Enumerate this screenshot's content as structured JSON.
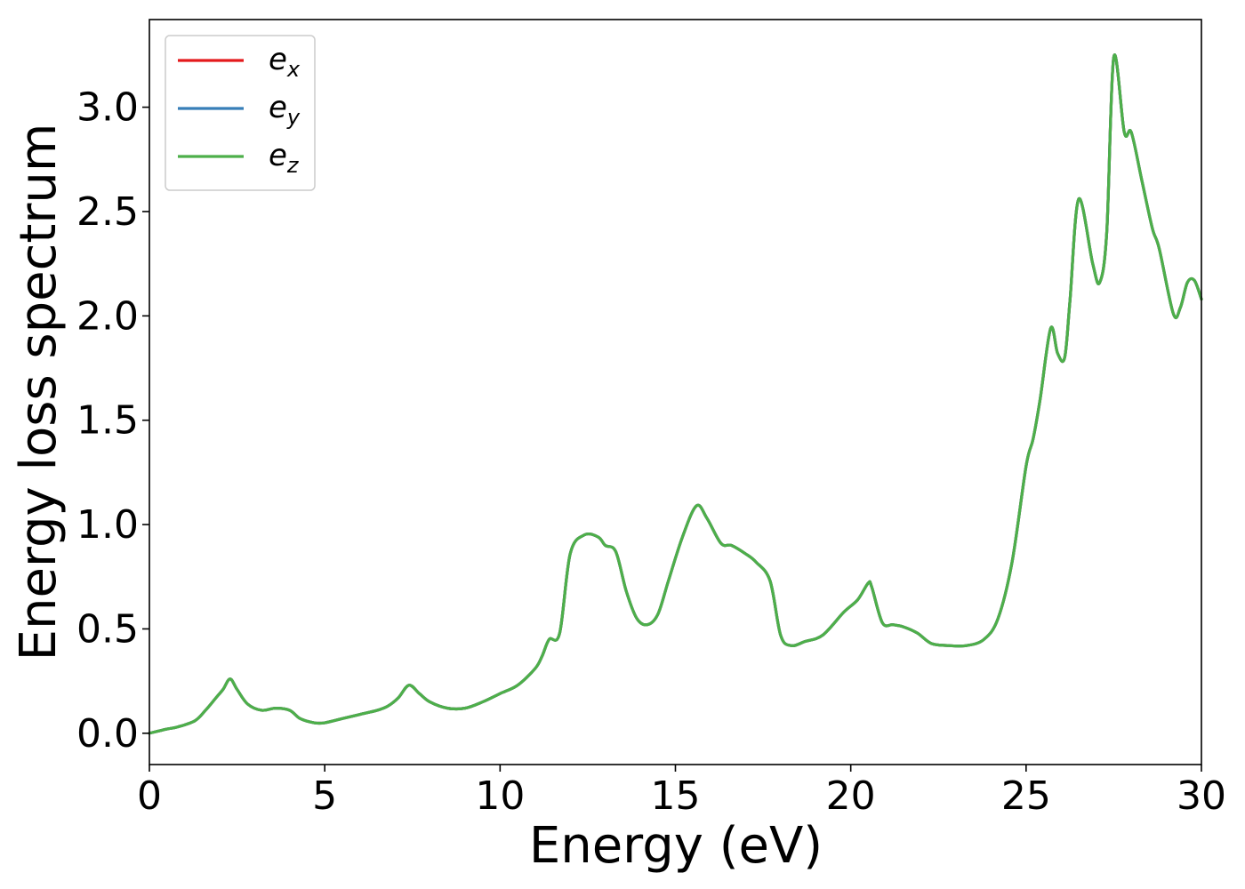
{
  "chart_data": {
    "type": "line",
    "title": "",
    "xlabel": "Energy (eV)",
    "ylabel": "Energy loss spectrum",
    "xlim": [
      0,
      30
    ],
    "ylim": [
      -0.15,
      3.42
    ],
    "xticks": [
      0,
      5,
      10,
      15,
      20,
      25,
      30
    ],
    "xtick_labels": [
      "0",
      "5",
      "10",
      "15",
      "20",
      "25",
      "30"
    ],
    "yticks": [
      0.0,
      0.5,
      1.0,
      1.5,
      2.0,
      2.5,
      3.0
    ],
    "ytick_labels": [
      "0.0",
      "0.5",
      "1.0",
      "1.5",
      "2.0",
      "2.5",
      "3.0"
    ],
    "grid": false,
    "legend_position": "top-left",
    "legend": [
      {
        "base": "e",
        "sub": "x",
        "color": "#e41a1c"
      },
      {
        "base": "e",
        "sub": "y",
        "color": "#377eb8"
      },
      {
        "base": "e",
        "sub": "z",
        "color": "#4daf4a"
      }
    ],
    "x": [
      0.0,
      0.5,
      0.8,
      1.3,
      1.6,
      1.9,
      2.1,
      2.3,
      2.5,
      2.8,
      3.2,
      3.6,
      4.0,
      4.3,
      4.7,
      5.0,
      5.5,
      6.0,
      6.5,
      6.8,
      7.1,
      7.4,
      7.7,
      8.0,
      8.5,
      9.0,
      9.5,
      10.0,
      10.5,
      11.0,
      11.2,
      11.4,
      11.7,
      12.0,
      12.4,
      12.8,
      13.0,
      13.3,
      13.6,
      13.9,
      14.2,
      14.5,
      14.8,
      15.2,
      15.6,
      15.9,
      16.3,
      16.6,
      17.0,
      17.3,
      17.7,
      18.0,
      18.3,
      18.7,
      19.2,
      19.8,
      20.2,
      20.5,
      20.6,
      20.9,
      21.2,
      21.5,
      21.9,
      22.3,
      22.8,
      23.3,
      23.8,
      24.2,
      24.6,
      25.0,
      25.2,
      25.4,
      25.7,
      25.9,
      26.1,
      26.25,
      26.5,
      26.9,
      27.1,
      27.3,
      27.5,
      27.8,
      28.0,
      28.3,
      28.6,
      28.8,
      29.2,
      29.4,
      29.6,
      29.8,
      30.0
    ],
    "series": [
      {
        "name": "e_x",
        "color": "#e41a1c",
        "values": [
          0.0,
          0.02,
          0.03,
          0.06,
          0.11,
          0.17,
          0.21,
          0.26,
          0.21,
          0.14,
          0.11,
          0.12,
          0.11,
          0.07,
          0.05,
          0.05,
          0.07,
          0.09,
          0.11,
          0.13,
          0.17,
          0.23,
          0.19,
          0.15,
          0.12,
          0.12,
          0.15,
          0.19,
          0.23,
          0.31,
          0.37,
          0.45,
          0.48,
          0.86,
          0.95,
          0.94,
          0.9,
          0.87,
          0.68,
          0.55,
          0.52,
          0.57,
          0.73,
          0.94,
          1.09,
          1.03,
          0.91,
          0.9,
          0.86,
          0.82,
          0.73,
          0.47,
          0.42,
          0.44,
          0.47,
          0.58,
          0.64,
          0.72,
          0.7,
          0.53,
          0.52,
          0.51,
          0.48,
          0.43,
          0.42,
          0.42,
          0.45,
          0.55,
          0.82,
          1.28,
          1.41,
          1.6,
          1.94,
          1.82,
          1.8,
          2.07,
          2.56,
          2.25,
          2.16,
          2.4,
          3.24,
          2.88,
          2.88,
          2.65,
          2.42,
          2.32,
          2.01,
          2.04,
          2.16,
          2.17,
          2.08
        ]
      },
      {
        "name": "e_y",
        "color": "#377eb8",
        "values": [
          0.0,
          0.02,
          0.03,
          0.06,
          0.11,
          0.17,
          0.21,
          0.26,
          0.21,
          0.14,
          0.11,
          0.12,
          0.11,
          0.07,
          0.05,
          0.05,
          0.07,
          0.09,
          0.11,
          0.13,
          0.17,
          0.23,
          0.19,
          0.15,
          0.12,
          0.12,
          0.15,
          0.19,
          0.23,
          0.31,
          0.37,
          0.45,
          0.48,
          0.86,
          0.95,
          0.94,
          0.9,
          0.87,
          0.68,
          0.55,
          0.52,
          0.57,
          0.73,
          0.94,
          1.09,
          1.03,
          0.91,
          0.9,
          0.86,
          0.82,
          0.73,
          0.47,
          0.42,
          0.44,
          0.47,
          0.58,
          0.64,
          0.72,
          0.7,
          0.53,
          0.52,
          0.51,
          0.48,
          0.43,
          0.42,
          0.42,
          0.45,
          0.55,
          0.82,
          1.28,
          1.41,
          1.6,
          1.94,
          1.82,
          1.8,
          2.07,
          2.56,
          2.25,
          2.16,
          2.4,
          3.24,
          2.88,
          2.88,
          2.65,
          2.42,
          2.32,
          2.01,
          2.04,
          2.16,
          2.17,
          2.08
        ]
      },
      {
        "name": "e_z",
        "color": "#4daf4a",
        "values": [
          0.0,
          0.02,
          0.03,
          0.06,
          0.11,
          0.17,
          0.21,
          0.26,
          0.21,
          0.14,
          0.11,
          0.12,
          0.11,
          0.07,
          0.05,
          0.05,
          0.07,
          0.09,
          0.11,
          0.13,
          0.17,
          0.23,
          0.19,
          0.15,
          0.12,
          0.12,
          0.15,
          0.19,
          0.23,
          0.31,
          0.37,
          0.45,
          0.48,
          0.86,
          0.95,
          0.94,
          0.9,
          0.87,
          0.68,
          0.55,
          0.52,
          0.57,
          0.73,
          0.94,
          1.09,
          1.03,
          0.91,
          0.9,
          0.86,
          0.82,
          0.73,
          0.47,
          0.42,
          0.44,
          0.47,
          0.58,
          0.64,
          0.72,
          0.7,
          0.53,
          0.52,
          0.51,
          0.48,
          0.43,
          0.42,
          0.42,
          0.45,
          0.55,
          0.82,
          1.28,
          1.41,
          1.6,
          1.94,
          1.82,
          1.8,
          2.07,
          2.56,
          2.25,
          2.16,
          2.4,
          3.24,
          2.88,
          2.88,
          2.65,
          2.42,
          2.32,
          2.01,
          2.04,
          2.16,
          2.17,
          2.08
        ]
      }
    ]
  }
}
